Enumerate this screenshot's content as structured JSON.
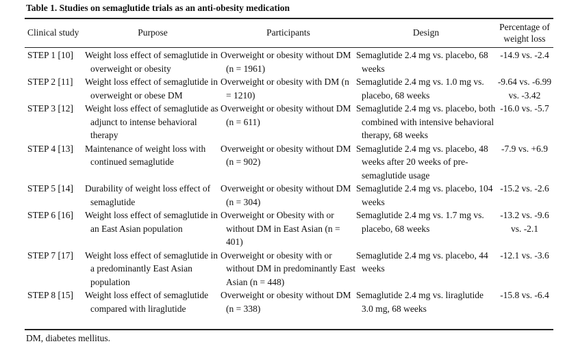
{
  "caption": "Table 1. Studies on semaglutide trials as an anti-obesity medication",
  "headers": {
    "study": "Clinical study",
    "purpose": "Purpose",
    "participants": "Participants",
    "design": "Design",
    "pct_line1": "Percentage of",
    "pct_line2": "weight loss"
  },
  "rows": [
    {
      "study": "STEP 1 [10]",
      "purpose": "Weight loss effect of semaglutide in overweight or obesity",
      "participants": "Overweight or obesity without DM (n = 1961)",
      "design": "Semaglutide 2.4 mg vs. placebo, 68 weeks",
      "pct": "-14.9 vs. -2.4"
    },
    {
      "study": "STEP 2 [11]",
      "purpose": "Weight loss effect of semaglutide in overweight or obese DM",
      "participants": "Overweight or obesity with DM (n = 1210)",
      "design": "Semaglutide 2.4 mg vs. 1.0 mg vs. placebo, 68 weeks",
      "pct": "-9.64 vs. -6.99 vs. -3.42"
    },
    {
      "study": "STEP 3 [12]",
      "purpose": "Weight loss effect of semaglutide as adjunct to intense behavioral therapy",
      "participants": "Overweight or obesity without DM (n = 611)",
      "design": "Semaglutide 2.4 mg vs. placebo, both combined with intensive behavioral therapy, 68 weeks",
      "pct": "-16.0 vs. -5.7"
    },
    {
      "study": "STEP 4 [13]",
      "purpose": "Maintenance of weight loss with continued semaglutide",
      "participants": "Overweight or obesity without DM (n = 902)",
      "design": "Semaglutide 2.4 mg vs. placebo, 48 weeks after 20 weeks of pre-semaglutide usage",
      "pct": "-7.9 vs. +6.9"
    },
    {
      "study": "STEP 5 [14]",
      "purpose": "Durability of weight loss effect of semaglutide",
      "participants": "Overweight or obesity without DM (n = 304)",
      "design": "Semaglutide 2.4 mg vs. placebo, 104 weeks",
      "pct": "-15.2 vs. -2.6"
    },
    {
      "study": "STEP 6 [16]",
      "purpose": "Weight loss effect of semaglutide in an East Asian population",
      "participants": "Overweight or Obesity with or without DM in East Asian (n = 401)",
      "design": "Semaglutide 2.4 mg vs. 1.7 mg vs. placebo, 68 weeks",
      "pct": "-13.2 vs. -9.6 vs. -2.1"
    },
    {
      "study": "STEP 7 [17]",
      "purpose": "Weight loss effect of semaglutide in a predominantly East Asian population",
      "participants": "Overweight or obesity with or without DM in predominantly East Asian (n = 448)",
      "design": "Semaglutide 2.4 mg vs. placebo, 44 weeks",
      "pct": "-12.1 vs. -3.6"
    },
    {
      "study": "STEP 8 [15]",
      "purpose": "Weight loss effect of semaglutide compared with liraglutide",
      "participants": "Overweight or obesity without DM (n = 338)",
      "design": "Semaglutide 2.4 mg vs. liraglutide 3.0 mg, 68 weeks",
      "pct": "-15.8 vs. -6.4"
    }
  ],
  "footnote": "DM, diabetes mellitus."
}
